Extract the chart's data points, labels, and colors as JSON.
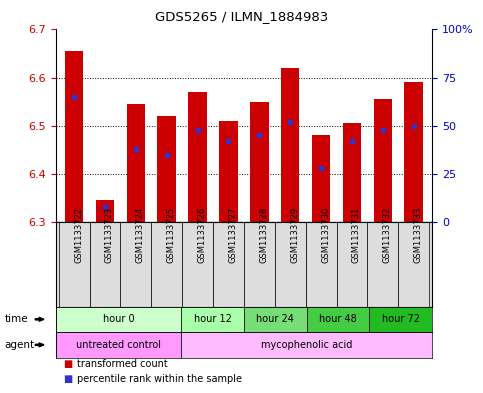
{
  "title": "GDS5265 / ILMN_1884983",
  "samples": [
    "GSM1133722",
    "GSM1133723",
    "GSM1133724",
    "GSM1133725",
    "GSM1133726",
    "GSM1133727",
    "GSM1133728",
    "GSM1133729",
    "GSM1133730",
    "GSM1133731",
    "GSM1133732",
    "GSM1133733"
  ],
  "transformed_counts": [
    6.655,
    6.345,
    6.545,
    6.52,
    6.57,
    6.51,
    6.55,
    6.62,
    6.48,
    6.505,
    6.555,
    6.59
  ],
  "percentile_ranks": [
    65,
    8,
    38,
    35,
    48,
    42,
    45,
    52,
    28,
    42,
    48,
    50
  ],
  "ylim_left": [
    6.3,
    6.7
  ],
  "yticks_left": [
    6.3,
    6.4,
    6.5,
    6.6,
    6.7
  ],
  "yticks_right": [
    0,
    25,
    50,
    75,
    100
  ],
  "bar_color": "#cc0000",
  "blue_color": "#3333cc",
  "grid_color": "#000000",
  "background_color": "#ffffff",
  "tick_label_color": "#cc0000",
  "right_tick_color": "#0000cc",
  "base_value": 6.3,
  "time_groups_x": [
    [
      0,
      4,
      "hour 0",
      "#ccffcc"
    ],
    [
      4,
      6,
      "hour 12",
      "#aaffaa"
    ],
    [
      6,
      8,
      "hour 24",
      "#77dd77"
    ],
    [
      8,
      10,
      "hour 48",
      "#44cc44"
    ],
    [
      10,
      12,
      "hour 72",
      "#22bb22"
    ]
  ],
  "agent_groups_x": [
    [
      0,
      4,
      "untreated control",
      "#ff99ff"
    ],
    [
      4,
      12,
      "mycophenolic acid",
      "#ffbbff"
    ]
  ],
  "legend_red": "transformed count",
  "legend_blue": "percentile rank within the sample"
}
